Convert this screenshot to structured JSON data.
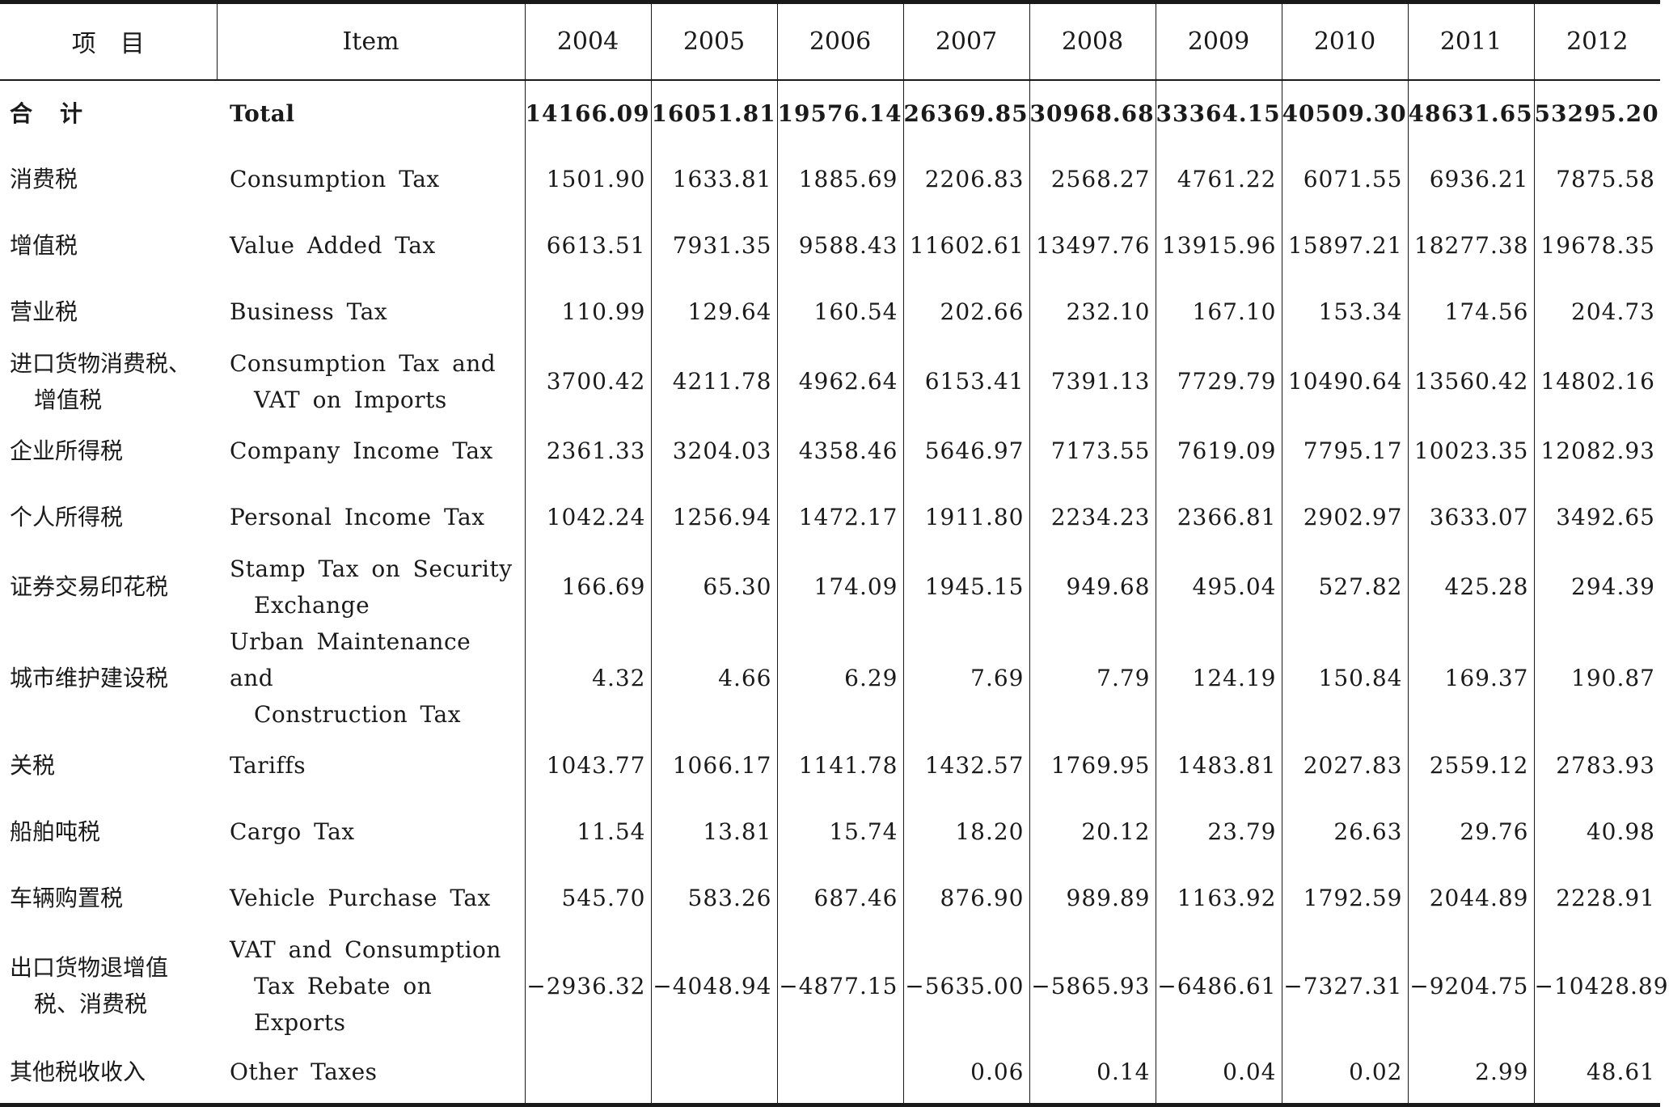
{
  "headers": {
    "cn": "项目",
    "en": "Item",
    "years": [
      "2004",
      "2005",
      "2006",
      "2007",
      "2008",
      "2009",
      "2010",
      "2011",
      "2012"
    ]
  },
  "rows": [
    {
      "cn": [
        "合计"
      ],
      "en": [
        "Total"
      ],
      "values": [
        "14166.09",
        "16051.81",
        "19576.14",
        "26369.85",
        "30968.68",
        "33364.15",
        "40509.30",
        "48631.65",
        "53295.20"
      ]
    },
    {
      "cn": [
        "消费税"
      ],
      "en": [
        "Consumption Tax"
      ],
      "values": [
        "1501.90",
        "1633.81",
        "1885.69",
        "2206.83",
        "2568.27",
        "4761.22",
        "6071.55",
        "6936.21",
        "7875.58"
      ]
    },
    {
      "cn": [
        "增值税"
      ],
      "en": [
        "Value Added Tax"
      ],
      "values": [
        "6613.51",
        "7931.35",
        "9588.43",
        "11602.61",
        "13497.76",
        "13915.96",
        "15897.21",
        "18277.38",
        "19678.35"
      ]
    },
    {
      "cn": [
        "营业税"
      ],
      "en": [
        "Business Tax"
      ],
      "values": [
        "110.99",
        "129.64",
        "160.54",
        "202.66",
        "232.10",
        "167.10",
        "153.34",
        "174.56",
        "204.73"
      ]
    },
    {
      "cn": [
        "进口货物消费税、",
        "增值税"
      ],
      "en": [
        "Consumption Tax and",
        "VAT on Imports"
      ],
      "values": [
        "3700.42",
        "4211.78",
        "4962.64",
        "6153.41",
        "7391.13",
        "7729.79",
        "10490.64",
        "13560.42",
        "14802.16"
      ]
    },
    {
      "cn": [
        "企业所得税"
      ],
      "en": [
        "Company Income Tax"
      ],
      "values": [
        "2361.33",
        "3204.03",
        "4358.46",
        "5646.97",
        "7173.55",
        "7619.09",
        "7795.17",
        "10023.35",
        "12082.93"
      ]
    },
    {
      "cn": [
        "个人所得税"
      ],
      "en": [
        "Personal Income Tax"
      ],
      "values": [
        "1042.24",
        "1256.94",
        "1472.17",
        "1911.80",
        "2234.23",
        "2366.81",
        "2902.97",
        "3633.07",
        "3492.65"
      ]
    },
    {
      "cn": [
        "证券交易印花税"
      ],
      "en": [
        "Stamp Tax on Security",
        "Exchange"
      ],
      "values": [
        "166.69",
        "65.30",
        "174.09",
        "1945.15",
        "949.68",
        "495.04",
        "527.82",
        "425.28",
        "294.39"
      ]
    },
    {
      "cn": [
        "城市维护建设税"
      ],
      "en": [
        "Urban Maintenance and",
        "Construction Tax"
      ],
      "values": [
        "4.32",
        "4.66",
        "6.29",
        "7.69",
        "7.79",
        "124.19",
        "150.84",
        "169.37",
        "190.87"
      ]
    },
    {
      "cn": [
        "关税"
      ],
      "en": [
        "Tariffs"
      ],
      "values": [
        "1043.77",
        "1066.17",
        "1141.78",
        "1432.57",
        "1769.95",
        "1483.81",
        "2027.83",
        "2559.12",
        "2783.93"
      ]
    },
    {
      "cn": [
        "船舶吨税"
      ],
      "en": [
        "Cargo Tax"
      ],
      "values": [
        "11.54",
        "13.81",
        "15.74",
        "18.20",
        "20.12",
        "23.79",
        "26.63",
        "29.76",
        "40.98"
      ]
    },
    {
      "cn": [
        "车辆购置税"
      ],
      "en": [
        "Vehicle Purchase Tax"
      ],
      "values": [
        "545.70",
        "583.26",
        "687.46",
        "876.90",
        "989.89",
        "1163.92",
        "1792.59",
        "2044.89",
        "2228.91"
      ]
    },
    {
      "cn": [
        "出口货物退增值",
        "税、消费税"
      ],
      "en": [
        "VAT and Consumption",
        "Tax Rebate on Exports"
      ],
      "values": [
        "−2936.32",
        "−4048.94",
        "−4877.15",
        "−5635.00",
        "−5865.93",
        "−6486.61",
        "−7327.31",
        "−9204.75",
        "−10428.89"
      ]
    },
    {
      "cn": [
        "其他税收收入"
      ],
      "en": [
        "Other Taxes"
      ],
      "values": [
        "",
        "",
        "",
        "0.06",
        "0.14",
        "0.04",
        "0.02",
        "2.99",
        "48.61"
      ]
    }
  ]
}
